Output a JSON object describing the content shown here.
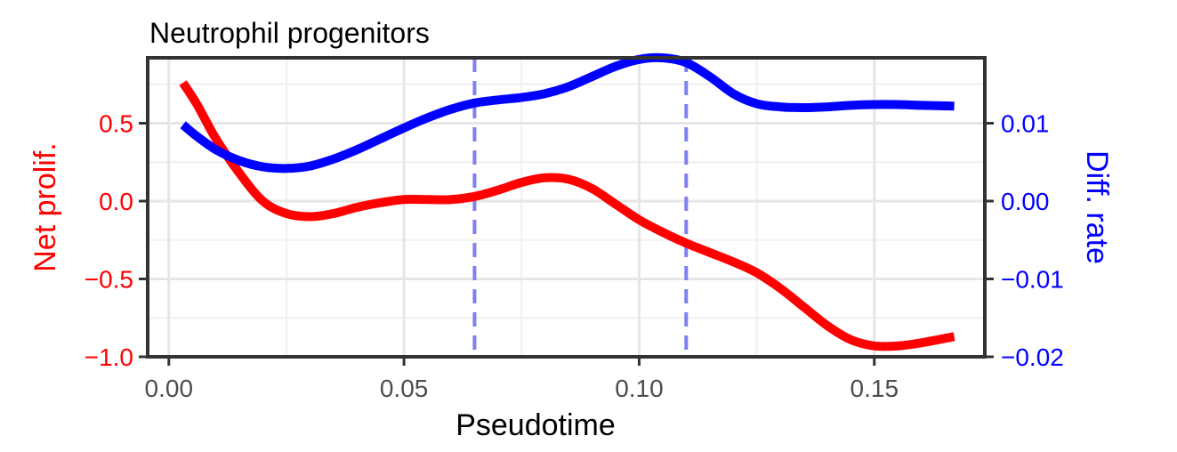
{
  "chart_data": {
    "type": "line",
    "title": "Neutrophil progenitors",
    "xlabel": "Pseudotime",
    "ylabel_left": "Net prolif.",
    "ylabel_right": "Diff. rate",
    "xlim": [
      -0.0045,
      0.1735
    ],
    "ylim_left": [
      -1.0,
      0.92
    ],
    "ylim_right": [
      -0.02,
      0.0184
    ],
    "xticks": [
      {
        "value": 0.0,
        "label": "0.00"
      },
      {
        "value": 0.05,
        "label": "0.05"
      },
      {
        "value": 0.1,
        "label": "0.10"
      },
      {
        "value": 0.15,
        "label": "0.15"
      }
    ],
    "yticks_left": [
      {
        "value": 0.5,
        "label": "0.5"
      },
      {
        "value": 0.0,
        "label": "0.0"
      },
      {
        "value": -0.5,
        "label": "−0.5"
      },
      {
        "value": -1.0,
        "label": "−1.0"
      }
    ],
    "yticks_right": [
      {
        "value": 0.01,
        "label": "0.01"
      },
      {
        "value": 0.0,
        "label": "0.00"
      },
      {
        "value": -0.01,
        "label": "−0.01"
      },
      {
        "value": -0.02,
        "label": "−0.02"
      }
    ],
    "grid": true,
    "vlines": [
      0.065,
      0.11
    ],
    "series": [
      {
        "axis": "left",
        "color": "#ff0000",
        "x": [
          0.003,
          0.006,
          0.01,
          0.015,
          0.02,
          0.025,
          0.03,
          0.035,
          0.04,
          0.045,
          0.05,
          0.055,
          0.06,
          0.065,
          0.07,
          0.075,
          0.08,
          0.085,
          0.09,
          0.095,
          0.1,
          0.105,
          0.11,
          0.115,
          0.12,
          0.125,
          0.13,
          0.135,
          0.14,
          0.145,
          0.15,
          0.155,
          0.16,
          0.167
        ],
        "values": [
          0.76,
          0.62,
          0.4,
          0.18,
          0.0,
          -0.08,
          -0.1,
          -0.08,
          -0.04,
          -0.01,
          0.01,
          0.01,
          0.01,
          0.03,
          0.07,
          0.12,
          0.15,
          0.14,
          0.08,
          -0.02,
          -0.12,
          -0.2,
          -0.27,
          -0.33,
          -0.39,
          -0.46,
          -0.56,
          -0.68,
          -0.8,
          -0.89,
          -0.93,
          -0.93,
          -0.91,
          -0.87
        ]
      },
      {
        "axis": "right",
        "color": "#0000ff",
        "x": [
          0.003,
          0.006,
          0.01,
          0.015,
          0.02,
          0.025,
          0.03,
          0.035,
          0.04,
          0.045,
          0.05,
          0.055,
          0.06,
          0.065,
          0.07,
          0.075,
          0.08,
          0.085,
          0.09,
          0.095,
          0.1,
          0.105,
          0.11,
          0.115,
          0.12,
          0.125,
          0.13,
          0.135,
          0.14,
          0.145,
          0.15,
          0.155,
          0.16,
          0.167
        ],
        "values": [
          0.0098,
          0.0083,
          0.0066,
          0.0052,
          0.0044,
          0.0042,
          0.0045,
          0.0054,
          0.0066,
          0.008,
          0.0094,
          0.0107,
          0.0118,
          0.0126,
          0.013,
          0.0133,
          0.0138,
          0.0147,
          0.016,
          0.0173,
          0.0182,
          0.0184,
          0.0178,
          0.016,
          0.0138,
          0.0125,
          0.0121,
          0.012,
          0.0121,
          0.0123,
          0.0124,
          0.0124,
          0.0123,
          0.0122
        ]
      }
    ]
  }
}
